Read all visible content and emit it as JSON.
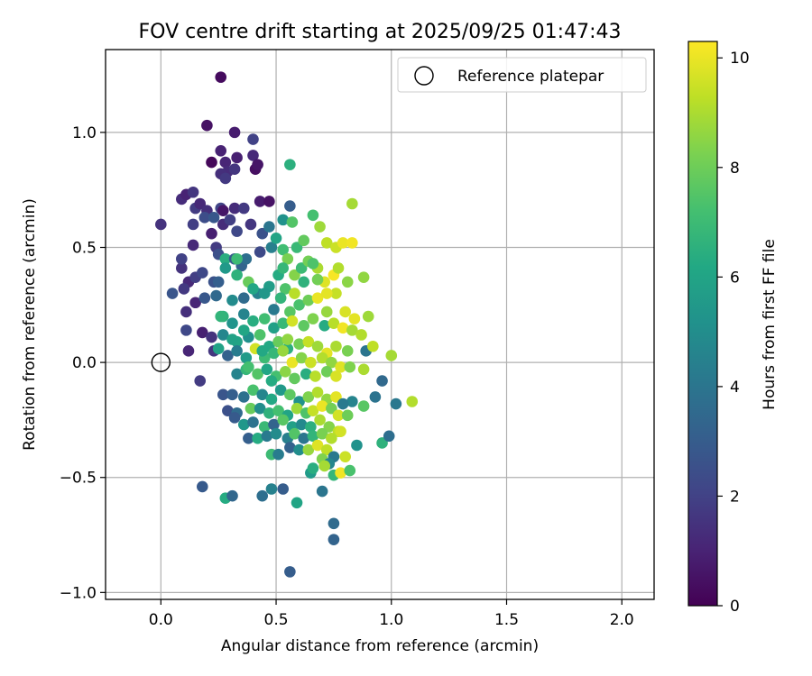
{
  "chart_data": {
    "type": "scatter",
    "title": "FOV centre drift starting at 2025/09/25 01:47:43",
    "xlabel": "Angular distance from reference (arcmin)",
    "ylabel": "Rotation from reference (arcmin)",
    "xlim": [
      -0.24,
      2.14
    ],
    "ylim": [
      -1.03,
      1.36
    ],
    "xticks": [
      0.0,
      0.5,
      1.0,
      1.5,
      2.0
    ],
    "xtick_labels": [
      "0.0",
      "0.5",
      "1.0",
      "1.5",
      "2.0"
    ],
    "yticks": [
      -1.0,
      -0.5,
      0.0,
      0.5,
      1.0
    ],
    "ytick_labels": [
      "−1.0",
      "−0.5",
      "0.0",
      "0.5",
      "1.0"
    ],
    "grid": true,
    "legend": {
      "label": "Reference platepar",
      "position": "top-right"
    },
    "reference_point": {
      "x": 0.0,
      "y": 0.0
    },
    "colorbar": {
      "label": "Hours from first FF file",
      "range": [
        0,
        10.3
      ],
      "ticks": [
        0,
        2,
        4,
        6,
        8,
        10
      ],
      "tick_labels": [
        "0",
        "2",
        "4",
        "6",
        "8",
        "10"
      ]
    },
    "point_columns": [
      "x",
      "y",
      "hours"
    ],
    "points": [
      [
        0.26,
        1.24,
        0.3
      ],
      [
        0.2,
        1.03,
        0.5
      ],
      [
        0.32,
        1.0,
        0.8
      ],
      [
        0.4,
        0.97,
        2.0
      ],
      [
        0.26,
        0.92,
        1.0
      ],
      [
        0.4,
        0.9,
        1.2
      ],
      [
        0.22,
        0.87,
        0.2
      ],
      [
        0.28,
        0.87,
        1.1
      ],
      [
        0.33,
        0.89,
        0.9
      ],
      [
        0.29,
        0.83,
        1.3
      ],
      [
        0.41,
        0.84,
        0.4
      ],
      [
        0.26,
        0.82,
        1.4
      ],
      [
        0.32,
        0.84,
        1.6
      ],
      [
        0.42,
        0.86,
        0.6
      ],
      [
        0.28,
        0.8,
        1.7
      ],
      [
        0.09,
        0.71,
        1.3
      ],
      [
        0.11,
        0.73,
        1.0
      ],
      [
        0.14,
        0.74,
        1.6
      ],
      [
        0.15,
        0.67,
        1.8
      ],
      [
        0.17,
        0.69,
        1.2
      ],
      [
        0.2,
        0.66,
        1.4
      ],
      [
        0.26,
        0.67,
        2.1
      ],
      [
        0.27,
        0.66,
        0.6
      ],
      [
        0.32,
        0.67,
        1.3
      ],
      [
        0.36,
        0.67,
        1.7
      ],
      [
        0.43,
        0.7,
        0.8
      ],
      [
        0.47,
        0.7,
        0.5
      ],
      [
        0.56,
        0.68,
        3.0
      ],
      [
        0.0,
        0.6,
        1.5
      ],
      [
        0.14,
        0.6,
        1.9
      ],
      [
        0.19,
        0.63,
        2.4
      ],
      [
        0.23,
        0.63,
        2.8
      ],
      [
        0.27,
        0.6,
        1.3
      ],
      [
        0.3,
        0.62,
        1.9
      ],
      [
        0.33,
        0.57,
        2.2
      ],
      [
        0.39,
        0.6,
        1.6
      ],
      [
        0.44,
        0.56,
        2.6
      ],
      [
        0.47,
        0.59,
        4.0
      ],
      [
        0.53,
        0.62,
        5.2
      ],
      [
        0.57,
        0.61,
        7.5
      ],
      [
        0.14,
        0.51,
        1.2
      ],
      [
        0.22,
        0.56,
        0.9
      ],
      [
        0.24,
        0.5,
        1.8
      ],
      [
        0.25,
        0.47,
        2.5
      ],
      [
        0.28,
        0.45,
        6.4
      ],
      [
        0.32,
        0.45,
        2.9
      ],
      [
        0.35,
        0.42,
        3.3
      ],
      [
        0.37,
        0.45,
        3.7
      ],
      [
        0.43,
        0.48,
        2.3
      ],
      [
        0.48,
        0.5,
        4.4
      ],
      [
        0.5,
        0.54,
        6.0
      ],
      [
        0.53,
        0.49,
        7.1
      ],
      [
        0.55,
        0.45,
        8.2
      ],
      [
        0.59,
        0.5,
        6.9
      ],
      [
        0.62,
        0.53,
        7.8
      ],
      [
        0.66,
        0.64,
        7.2
      ],
      [
        0.69,
        0.59,
        8.8
      ],
      [
        0.72,
        0.52,
        9.3
      ],
      [
        0.76,
        0.5,
        9.5
      ],
      [
        0.79,
        0.52,
        10.0
      ],
      [
        0.83,
        0.52,
        10.1
      ],
      [
        0.83,
        0.69,
        8.9
      ],
      [
        0.09,
        0.41,
        1.5
      ],
      [
        0.09,
        0.45,
        2.0
      ],
      [
        0.12,
        0.35,
        1.2
      ],
      [
        0.15,
        0.37,
        1.9
      ],
      [
        0.18,
        0.39,
        2.2
      ],
      [
        0.23,
        0.35,
        2.6
      ],
      [
        0.25,
        0.35,
        3.1
      ],
      [
        0.28,
        0.41,
        5.5
      ],
      [
        0.33,
        0.38,
        6.6
      ],
      [
        0.38,
        0.35,
        7.9
      ],
      [
        0.42,
        0.3,
        4.5
      ],
      [
        0.47,
        0.33,
        5.7
      ],
      [
        0.51,
        0.38,
        6.3
      ],
      [
        0.54,
        0.32,
        7.4
      ],
      [
        0.58,
        0.38,
        8.4
      ],
      [
        0.61,
        0.41,
        7.0
      ],
      [
        0.64,
        0.44,
        8.1
      ],
      [
        0.68,
        0.41,
        9.0
      ],
      [
        0.71,
        0.35,
        9.8
      ],
      [
        0.75,
        0.38,
        10.2
      ],
      [
        0.77,
        0.41,
        9.1
      ],
      [
        0.81,
        0.35,
        8.5
      ],
      [
        0.88,
        0.37,
        8.6
      ],
      [
        0.05,
        0.3,
        2.7
      ],
      [
        0.1,
        0.32,
        1.7
      ],
      [
        0.15,
        0.26,
        1.1
      ],
      [
        0.19,
        0.28,
        2.8
      ],
      [
        0.24,
        0.29,
        3.5
      ],
      [
        0.31,
        0.27,
        4.9
      ],
      [
        0.36,
        0.28,
        3.6
      ],
      [
        0.4,
        0.32,
        6.1
      ],
      [
        0.45,
        0.3,
        5.4
      ],
      [
        0.49,
        0.23,
        4.2
      ],
      [
        0.52,
        0.28,
        6.7
      ],
      [
        0.56,
        0.22,
        7.6
      ],
      [
        0.6,
        0.25,
        7.3
      ],
      [
        0.64,
        0.27,
        8.0
      ],
      [
        0.68,
        0.28,
        10.0
      ],
      [
        0.72,
        0.22,
        8.7
      ],
      [
        0.76,
        0.3,
        9.4
      ],
      [
        0.8,
        0.22,
        9.7
      ],
      [
        0.84,
        0.19,
        9.9
      ],
      [
        0.9,
        0.2,
        8.8
      ],
      [
        0.11,
        0.22,
        1.4
      ],
      [
        0.27,
        0.2,
        6.6
      ],
      [
        0.31,
        0.17,
        5.3
      ],
      [
        0.36,
        0.21,
        4.6
      ],
      [
        0.4,
        0.18,
        6.4
      ],
      [
        0.45,
        0.19,
        7.1
      ],
      [
        0.49,
        0.15,
        5.8
      ],
      [
        0.53,
        0.17,
        6.9
      ],
      [
        0.57,
        0.18,
        9.6
      ],
      [
        0.62,
        0.16,
        7.7
      ],
      [
        0.66,
        0.19,
        8.3
      ],
      [
        0.71,
        0.16,
        6.3
      ],
      [
        0.75,
        0.17,
        9.2
      ],
      [
        0.79,
        0.15,
        10.1
      ],
      [
        0.83,
        0.14,
        8.9
      ],
      [
        0.87,
        0.12,
        9.1
      ],
      [
        0.11,
        0.14,
        2.2
      ],
      [
        0.18,
        0.13,
        0.9
      ],
      [
        0.22,
        0.11,
        1.5
      ],
      [
        0.27,
        0.12,
        4.7
      ],
      [
        0.33,
        0.09,
        6.0
      ],
      [
        0.38,
        0.11,
        5.1
      ],
      [
        0.43,
        0.12,
        7.4
      ],
      [
        0.47,
        0.07,
        6.2
      ],
      [
        0.51,
        0.09,
        7.9
      ],
      [
        0.55,
        0.06,
        6.5
      ],
      [
        0.6,
        0.08,
        8.1
      ],
      [
        0.64,
        0.09,
        9.4
      ],
      [
        0.68,
        0.07,
        8.8
      ],
      [
        0.72,
        0.04,
        9.9
      ],
      [
        0.76,
        0.07,
        9.0
      ],
      [
        0.81,
        0.05,
        8.2
      ],
      [
        0.89,
        0.05,
        4.0
      ],
      [
        0.92,
        0.07,
        9.3
      ],
      [
        1.0,
        0.03,
        8.9
      ],
      [
        0.12,
        0.05,
        1.1
      ],
      [
        0.23,
        0.05,
        1.6
      ],
      [
        0.25,
        0.06,
        5.9
      ],
      [
        0.29,
        0.03,
        3.2
      ],
      [
        0.33,
        0.05,
        4.3
      ],
      [
        0.37,
        0.02,
        5.6
      ],
      [
        0.41,
        0.06,
        9.6
      ],
      [
        0.45,
        0.02,
        7.0
      ],
      [
        0.49,
        0.04,
        6.8
      ],
      [
        0.53,
        0.05,
        8.7
      ],
      [
        0.57,
        0.0,
        10.0
      ],
      [
        0.61,
        0.02,
        8.4
      ],
      [
        0.65,
        0.0,
        9.5
      ],
      [
        0.7,
        0.02,
        9.1
      ],
      [
        0.74,
        0.0,
        8.6
      ],
      [
        0.78,
        -0.02,
        9.8
      ],
      [
        0.82,
        -0.02,
        8.3
      ],
      [
        0.88,
        -0.03,
        9.0
      ],
      [
        0.33,
        -0.05,
        4.6
      ],
      [
        0.37,
        -0.03,
        6.8
      ],
      [
        0.42,
        -0.05,
        7.5
      ],
      [
        0.46,
        -0.03,
        6.1
      ],
      [
        0.5,
        -0.06,
        7.2
      ],
      [
        0.54,
        -0.04,
        8.5
      ],
      [
        0.58,
        -0.07,
        7.8
      ],
      [
        0.63,
        -0.05,
        6.4
      ],
      [
        0.67,
        -0.06,
        9.2
      ],
      [
        0.72,
        -0.04,
        8.0
      ],
      [
        0.76,
        -0.06,
        9.7
      ],
      [
        0.17,
        -0.08,
        1.8
      ],
      [
        0.96,
        -0.08,
        3.5
      ],
      [
        0.27,
        -0.14,
        2.7
      ],
      [
        0.31,
        -0.14,
        3.1
      ],
      [
        0.36,
        -0.15,
        3.8
      ],
      [
        0.4,
        -0.12,
        7.3
      ],
      [
        0.44,
        -0.14,
        4.7
      ],
      [
        0.48,
        -0.16,
        6.2
      ],
      [
        0.52,
        -0.12,
        5.5
      ],
      [
        0.56,
        -0.14,
        7.7
      ],
      [
        0.6,
        -0.17,
        5.2
      ],
      [
        0.64,
        -0.15,
        8.3
      ],
      [
        0.68,
        -0.13,
        9.1
      ],
      [
        0.72,
        -0.16,
        8.6
      ],
      [
        0.76,
        -0.15,
        9.9
      ],
      [
        0.83,
        -0.17,
        4.6
      ],
      [
        0.93,
        -0.15,
        3.9
      ],
      [
        1.09,
        -0.17,
        9.1
      ],
      [
        1.02,
        -0.18,
        4.1
      ],
      [
        0.29,
        -0.21,
        2.5
      ],
      [
        0.33,
        -0.22,
        3.6
      ],
      [
        0.39,
        -0.2,
        7.9
      ],
      [
        0.43,
        -0.2,
        5.0
      ],
      [
        0.47,
        -0.22,
        6.6
      ],
      [
        0.51,
        -0.21,
        7.2
      ],
      [
        0.55,
        -0.23,
        6.0
      ],
      [
        0.59,
        -0.2,
        8.8
      ],
      [
        0.63,
        -0.22,
        7.4
      ],
      [
        0.66,
        -0.21,
        9.4
      ],
      [
        0.7,
        -0.19,
        10.0
      ],
      [
        0.74,
        -0.2,
        8.1
      ],
      [
        0.77,
        -0.23,
        9.6
      ],
      [
        0.79,
        -0.18,
        4.2
      ],
      [
        0.88,
        -0.19,
        7.6
      ],
      [
        0.32,
        -0.24,
        2.9
      ],
      [
        0.36,
        -0.27,
        5.4
      ],
      [
        0.4,
        -0.26,
        3.9
      ],
      [
        0.45,
        -0.28,
        6.9
      ],
      [
        0.49,
        -0.27,
        3.3
      ],
      [
        0.53,
        -0.25,
        7.6
      ],
      [
        0.57,
        -0.28,
        5.8
      ],
      [
        0.61,
        -0.27,
        4.8
      ],
      [
        0.65,
        -0.28,
        6.5
      ],
      [
        0.69,
        -0.25,
        9.0
      ],
      [
        0.73,
        -0.28,
        8.4
      ],
      [
        0.77,
        -0.3,
        9.3
      ],
      [
        0.81,
        -0.23,
        8.0
      ],
      [
        0.38,
        -0.33,
        3.1
      ],
      [
        0.42,
        -0.33,
        6.3
      ],
      [
        0.46,
        -0.32,
        4.2
      ],
      [
        0.5,
        -0.31,
        4.9
      ],
      [
        0.55,
        -0.33,
        4.4
      ],
      [
        0.58,
        -0.31,
        7.5
      ],
      [
        0.62,
        -0.33,
        4.0
      ],
      [
        0.66,
        -0.32,
        6.7
      ],
      [
        0.7,
        -0.31,
        8.2
      ],
      [
        0.74,
        -0.33,
        9.1
      ],
      [
        0.78,
        -0.3,
        9.6
      ],
      [
        0.85,
        -0.36,
        5.2
      ],
      [
        0.96,
        -0.35,
        6.6
      ],
      [
        0.99,
        -0.32,
        3.7
      ],
      [
        0.48,
        -0.4,
        7.0
      ],
      [
        0.51,
        -0.4,
        4.3
      ],
      [
        0.56,
        -0.37,
        3.2
      ],
      [
        0.6,
        -0.38,
        5.0
      ],
      [
        0.64,
        -0.38,
        8.7
      ],
      [
        0.68,
        -0.36,
        9.8
      ],
      [
        0.72,
        -0.38,
        9.3
      ],
      [
        0.75,
        -0.41,
        4.1
      ],
      [
        0.8,
        -0.41,
        9.5
      ],
      [
        0.7,
        -0.42,
        8.3
      ],
      [
        0.73,
        -0.44,
        4.7
      ],
      [
        0.65,
        -0.48,
        5.6
      ],
      [
        0.66,
        -0.46,
        6.4
      ],
      [
        0.71,
        -0.45,
        8.9
      ],
      [
        0.75,
        -0.49,
        6.8
      ],
      [
        0.78,
        -0.48,
        10.1
      ],
      [
        0.82,
        -0.47,
        7.3
      ],
      [
        0.18,
        -0.54,
        2.9
      ],
      [
        0.28,
        -0.59,
        6.3
      ],
      [
        0.31,
        -0.58,
        3.4
      ],
      [
        0.44,
        -0.58,
        3.7
      ],
      [
        0.48,
        -0.55,
        4.5
      ],
      [
        0.53,
        -0.55,
        3.0
      ],
      [
        0.59,
        -0.61,
        6.0
      ],
      [
        0.7,
        -0.56,
        4.0
      ],
      [
        0.75,
        -0.7,
        3.6
      ],
      [
        0.75,
        -0.77,
        3.3
      ],
      [
        0.56,
        -0.91,
        3.0
      ],
      [
        0.56,
        0.86,
        6.5
      ],
      [
        0.33,
        0.45,
        7.0
      ],
      [
        0.26,
        0.2,
        6.7
      ],
      [
        0.53,
        0.41,
        6.8
      ],
      [
        0.44,
        0.05,
        6.2
      ],
      [
        0.31,
        0.1,
        5.9
      ],
      [
        0.36,
        0.14,
        6.1
      ],
      [
        0.66,
        0.43,
        7.4
      ],
      [
        0.62,
        0.35,
        6.6
      ],
      [
        0.48,
        -0.08,
        6.3
      ],
      [
        0.38,
        -0.02,
        7.2
      ],
      [
        0.58,
        0.3,
        9.2
      ],
      [
        0.68,
        0.36,
        8.1
      ],
      [
        0.72,
        0.3,
        9.9
      ],
      [
        0.55,
        0.1,
        8.6
      ]
    ]
  }
}
